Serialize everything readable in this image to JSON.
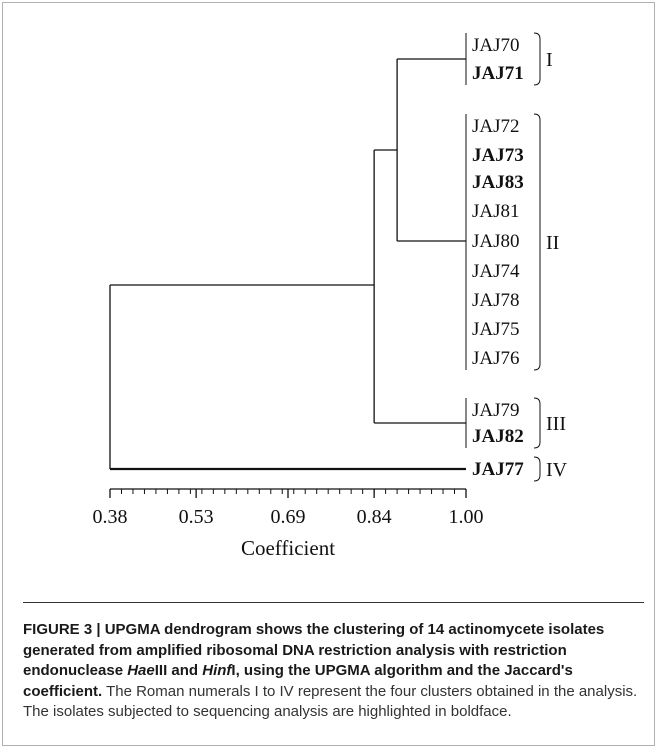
{
  "figure": {
    "leaves": [
      {
        "label": "JAJ70",
        "bold": false
      },
      {
        "label": "JAJ71",
        "bold": true
      },
      {
        "label": "JAJ72",
        "bold": false
      },
      {
        "label": "JAJ73",
        "bold": true
      },
      {
        "label": "JAJ83",
        "bold": true
      },
      {
        "label": "JAJ81",
        "bold": false
      },
      {
        "label": "JAJ80",
        "bold": false
      },
      {
        "label": "JAJ74",
        "bold": false
      },
      {
        "label": "JAJ78",
        "bold": false
      },
      {
        "label": "JAJ75",
        "bold": false
      },
      {
        "label": "JAJ76",
        "bold": false
      },
      {
        "label": "JAJ79",
        "bold": false
      },
      {
        "label": "JAJ82",
        "bold": true
      },
      {
        "label": "JAJ77",
        "bold": true
      }
    ],
    "clusters": [
      {
        "numeral": "I",
        "first": 0,
        "last": 1
      },
      {
        "numeral": "II",
        "first": 2,
        "last": 10
      },
      {
        "numeral": "III",
        "first": 11,
        "last": 12
      },
      {
        "numeral": "IV",
        "first": 13,
        "last": 13
      }
    ],
    "nodes": {
      "cluster_I": 0.88,
      "cluster_II": 0.88,
      "cluster_I_II": 0.84,
      "cluster_III": 0.84,
      "cluster_I_II_III": 0.84,
      "root": 0.38
    },
    "axis": {
      "min": 0.38,
      "max": 1.0,
      "tick_labels": [
        "0.38",
        "0.53",
        "0.69",
        "0.84",
        "1.00"
      ],
      "tick_values": [
        0.38,
        0.53,
        0.69,
        0.84,
        1.0
      ],
      "label": "Coefficient"
    }
  },
  "caption": {
    "bold": "FIGURE 3 | UPGMA dendrogram shows the clustering of 14 actinomycete isolates generated from amplified ribosomal DNA restriction analysis with restriction endonuclease ",
    "bold_it1": "Hae",
    "bold_mid1": "III and ",
    "bold_it2": "Hinf",
    "bold_mid2": "I, using the UPGMA algorithm and the Jaccard's coefficient.",
    "normal": " The Roman numerals I to IV represent the four clusters obtained in the analysis. The isolates subjected to sequencing analysis are highlighted in boldface."
  }
}
